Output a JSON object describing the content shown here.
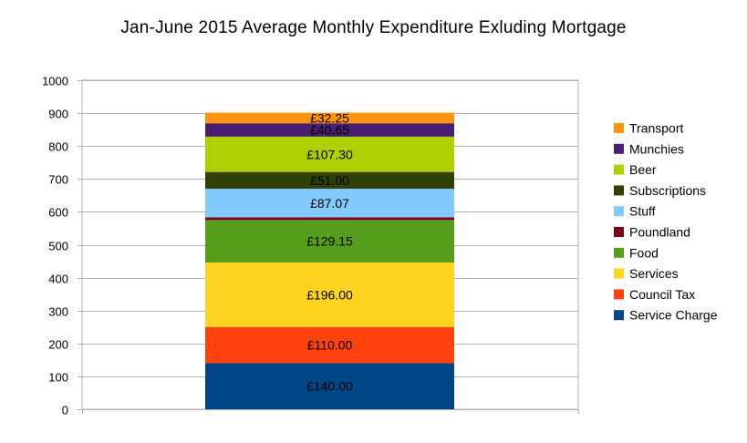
{
  "chart_data": {
    "type": "bar",
    "stacked": true,
    "title": "Jan-June 2015 Average Monthly Expenditure Exluding Mortgage",
    "xlabel": "",
    "ylabel": "",
    "ylim": [
      0,
      1000
    ],
    "y_ticks": [
      0,
      100,
      200,
      300,
      400,
      500,
      600,
      700,
      800,
      900,
      1000
    ],
    "grid": true,
    "legend_position": "right",
    "series": [
      {
        "name": "Service Charge",
        "value": 140.0,
        "label": "£140.00",
        "color": "#004586"
      },
      {
        "name": "Council Tax",
        "value": 110.0,
        "label": "£110.00",
        "color": "#ff420e"
      },
      {
        "name": "Services",
        "value": 196.0,
        "label": "£196.00",
        "color": "#ffd320"
      },
      {
        "name": "Food",
        "value": 129.15,
        "label": "£129.15",
        "color": "#579d1c"
      },
      {
        "name": "Poundland",
        "value": 8.0,
        "label": "",
        "color": "#7e0021"
      },
      {
        "name": "Stuff",
        "value": 87.07,
        "label": "£87.07",
        "color": "#83caff"
      },
      {
        "name": "Subscriptions",
        "value": 51.0,
        "label": "£51.00",
        "color": "#314004"
      },
      {
        "name": "Beer",
        "value": 107.3,
        "label": "£107.30",
        "color": "#aecf00"
      },
      {
        "name": "Munchies",
        "value": 40.65,
        "label": "£40.65",
        "color": "#4b1f6f"
      },
      {
        "name": "Transport",
        "value": 32.25,
        "label": "£32.25",
        "color": "#ff950e"
      }
    ],
    "legend_order": [
      "Transport",
      "Munchies",
      "Beer",
      "Subscriptions",
      "Stuff",
      "Poundland",
      "Food",
      "Services",
      "Council Tax",
      "Service Charge"
    ]
  }
}
